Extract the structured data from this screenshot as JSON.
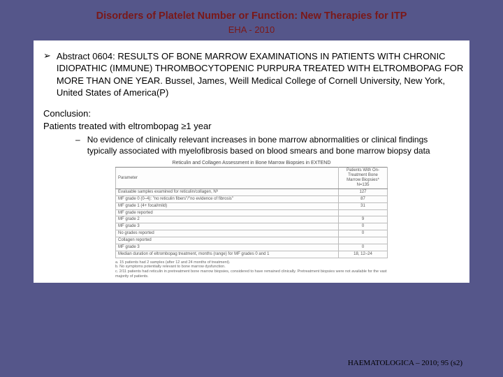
{
  "colors": {
    "background": "#55568a",
    "title": "#7a1818",
    "content_bg": "#ffffff",
    "text": "#000000",
    "table_border": "#bbbbbb",
    "table_text": "#555555"
  },
  "title": "Disorders of Platelet Number or Function: New Therapies for ITP",
  "subtitle": "EHA - 2010",
  "abstract": {
    "bullet": "➢",
    "text": "Abstract 0604: RESULTS OF BONE MARROW EXAMINATIONS IN PATIENTS WITH CHRONIC IDIOPATHIC (IMMUNE) THROMBOCYTOPENIC PURPURA TREATED WITH ELTROMBOPAG FOR MORE THAN ONE YEAR. Bussel, James, Weill Medical College of Cornell University, New York, United States of America(P)"
  },
  "conclusion": {
    "heading": "Conclusion:",
    "line": "Patients treated with eltrombopag ≥1 year",
    "sub_dash": "–",
    "sub_text": "No evidence of clinically relevant increases in bone marrow abnormalities or clinical findings typically associated with myelofibrosis based on blood smears and bone marrow biopsy data"
  },
  "table": {
    "caption": "Reticulin and Collagen Assessment in Bone Marrow Biopsies in EXTEND",
    "col_header_param": "Parameter",
    "col_header_value": "Patients With On-Treatment Bone Marrow Biopsies* N=135",
    "rows": [
      {
        "param": "Evaluable samples examined for reticulin/collagen, Nᵇ",
        "val": "127"
      },
      {
        "param": "MF grade 0 (0–4): \"no reticulin fibers\"/\"no evidence of fibrosis\"",
        "val": "87"
      },
      {
        "param": "MF grade 1 (4+ focal/mild)",
        "val": "31"
      },
      {
        "param": "MF grade reported",
        "val": ""
      },
      {
        "param": "MF grade 2",
        "val": "9"
      },
      {
        "param": "MF grade 3",
        "val": "0"
      },
      {
        "param": "No grades reported",
        "val": "0"
      },
      {
        "param": "Collagen reported",
        "val": ""
      },
      {
        "param": "MF grade 3",
        "val": "0"
      },
      {
        "param": "Median duration of eltrombopag treatment, months (range) for MF grades 0 and 1",
        "val": "18, 12–24"
      }
    ],
    "footnotes": [
      "a. 15 patients had 2 samples (after 12 and 24 months of treatment).",
      "b. No symptoms potentially relevant to bone marrow dysfunction.",
      "c. 2/11 patients had reticulin in pretreatment bone marrow biopsies, considered to have remained clinically. Pretreatment biopsies were not available for the vast majority of patients."
    ]
  },
  "citation": "HAEMATOLOGICA – 2010; 95 (s2)"
}
